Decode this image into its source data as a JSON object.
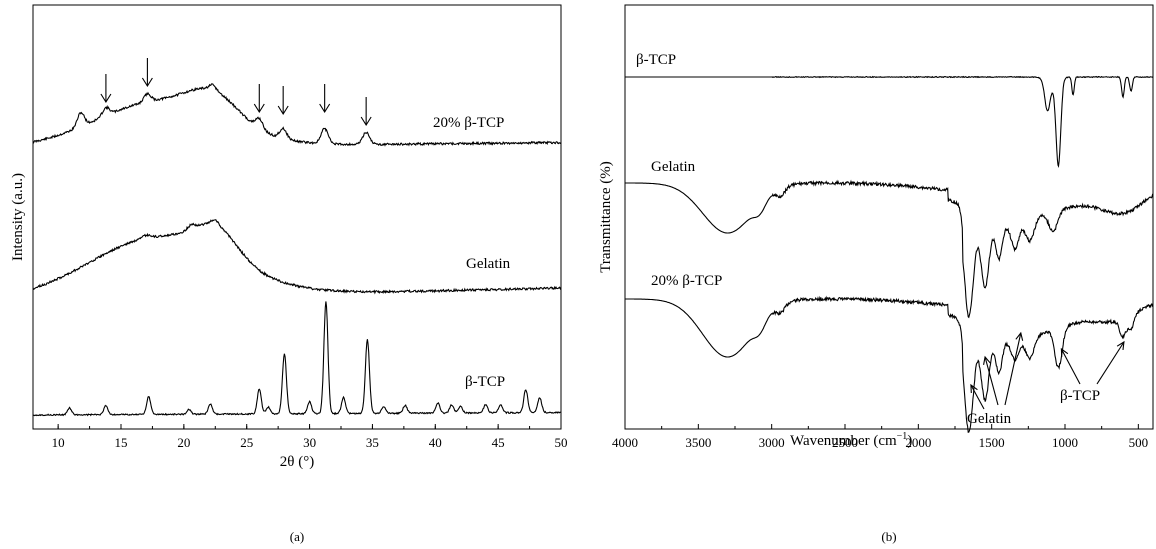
{
  "chart_data": [
    {
      "type": "line",
      "panel_label": "(a)",
      "xlabel": "2θ (°)",
      "ylabel": "Intensity (a.u.)",
      "xlim": [
        8,
        50
      ],
      "xticks": [
        10,
        15,
        20,
        25,
        30,
        35,
        40,
        45,
        50
      ],
      "series": [
        {
          "name": "20% β-TCP",
          "peaks": [
            11.8,
            13.8,
            17.1,
            22.3,
            26.0,
            27.9,
            31.2,
            34.5
          ],
          "marked_peaks": [
            13.8,
            17.1,
            26.0,
            27.9,
            31.2,
            34.5
          ]
        },
        {
          "name": "Gelatin",
          "peaks": [
            17.0,
            20.6,
            22.5
          ]
        },
        {
          "name": "β-TCP",
          "peaks": [
            10.9,
            13.8,
            17.2,
            20.4,
            22.1,
            26.0,
            26.7,
            28.0,
            30.0,
            31.3,
            32.7,
            34.6,
            35.9,
            37.6,
            40.2,
            41.3,
            42.0,
            44.0,
            45.2,
            47.2,
            48.3
          ]
        }
      ]
    },
    {
      "type": "line",
      "panel_label": "(b)",
      "xlabel": "Wavenumber (cm",
      "xlabel_sup": "−1",
      "xlabel_end": ")",
      "ylabel": "Transmittance (%)",
      "xlim": [
        4000,
        400
      ],
      "xticks": [
        4000,
        3500,
        3000,
        2500,
        2000,
        1500,
        1000,
        500
      ],
      "series": [
        {
          "name": "β-TCP",
          "bands": [
            1120,
            1045,
            945,
            605,
            550
          ]
        },
        {
          "name": "Gelatin",
          "bands": [
            3300,
            3080,
            2940,
            1655,
            1545,
            1450,
            1240,
            1080
          ]
        },
        {
          "name": "20% β-TCP",
          "bands": [
            3300,
            3080,
            2940,
            1655,
            1545,
            1450,
            1240,
            1045,
            605,
            550
          ]
        }
      ],
      "annotations": [
        {
          "text": "Gelatin",
          "points_to": [
            1655,
            1545,
            1240
          ]
        },
        {
          "text": "β-TCP",
          "points_to": [
            1045,
            605
          ]
        }
      ]
    }
  ]
}
